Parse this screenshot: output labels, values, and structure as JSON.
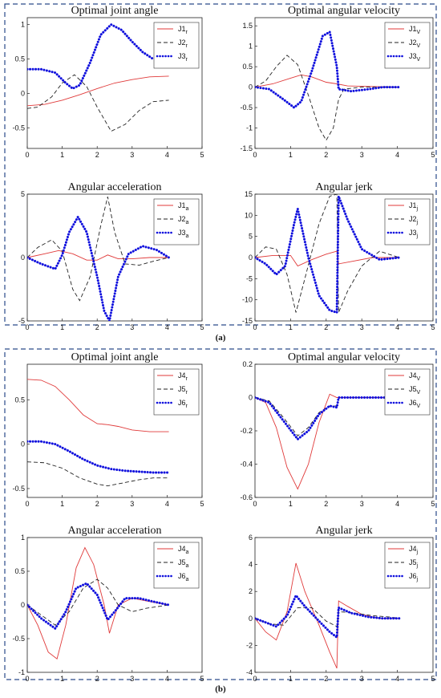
{
  "figure": {
    "caption_a": "(a)",
    "caption_b": "(b)"
  },
  "colors": {
    "red": "#e03a3a",
    "black": "#222222",
    "blue": "#1010dd",
    "frame": "#2a4a8a"
  },
  "chart_data": [
    {
      "type": "line",
      "title": "Optimal joint angle",
      "group": "a",
      "xlim": [
        0,
        5
      ],
      "ylim": [
        -0.8,
        1.1
      ],
      "xticks": [
        0,
        1,
        2,
        3,
        4,
        5
      ],
      "yticks": [
        -0.5,
        0,
        0.5,
        1
      ],
      "legend_position": "top-right",
      "series": [
        {
          "name": "J1",
          "sub": "r",
          "style": "solid",
          "color": "#e03a3a",
          "x": [
            0,
            0.5,
            1,
            1.5,
            2,
            2.5,
            3,
            3.5,
            4.05
          ],
          "y": [
            -0.18,
            -0.16,
            -0.1,
            -0.02,
            0.07,
            0.15,
            0.2,
            0.24,
            0.25
          ]
        },
        {
          "name": "J2",
          "sub": "r",
          "style": "dashed",
          "color": "#222222",
          "x": [
            0,
            0.3,
            0.7,
            1,
            1.35,
            1.7,
            2,
            2.4,
            2.8,
            3.2,
            3.6,
            4.05
          ],
          "y": [
            -0.22,
            -0.2,
            -0.05,
            0.15,
            0.27,
            0.1,
            -0.2,
            -0.55,
            -0.45,
            -0.25,
            -0.12,
            -0.1
          ]
        },
        {
          "name": "J3",
          "sub": "r",
          "style": "dotted",
          "color": "#1010dd",
          "x": [
            0,
            0.4,
            0.8,
            1.1,
            1.3,
            1.5,
            1.8,
            2.1,
            2.4,
            2.7,
            3,
            3.3,
            3.6
          ],
          "y": [
            0.35,
            0.35,
            0.3,
            0.15,
            0.07,
            0.12,
            0.45,
            0.85,
            1.0,
            0.92,
            0.75,
            0.6,
            0.5
          ]
        }
      ]
    },
    {
      "type": "line",
      "title": "Optimal angular velocity",
      "group": "a",
      "xlim": [
        0,
        5
      ],
      "ylim": [
        -1.5,
        1.7
      ],
      "xticks": [
        0,
        1,
        2,
        3,
        4,
        5
      ],
      "yticks": [
        -1.5,
        -1,
        -0.5,
        0,
        0.5,
        1,
        1.5
      ],
      "legend_position": "top-right",
      "series": [
        {
          "name": "J1",
          "sub": "V",
          "style": "solid",
          "color": "#e03a3a",
          "x": [
            0,
            0.5,
            1,
            1.3,
            1.6,
            2,
            2.3,
            2.6,
            3,
            4.05
          ],
          "y": [
            0,
            0.08,
            0.22,
            0.3,
            0.25,
            0.12,
            0.08,
            0.03,
            0.02,
            0
          ]
        },
        {
          "name": "J2",
          "sub": "V",
          "style": "dashed",
          "color": "#222222",
          "x": [
            0,
            0.3,
            0.6,
            0.9,
            1.2,
            1.5,
            1.8,
            2.0,
            2.2,
            2.35,
            2.5,
            3,
            3.5,
            4.05
          ],
          "y": [
            0,
            0.15,
            0.5,
            0.78,
            0.55,
            -0.2,
            -1.0,
            -1.3,
            -1.0,
            -0.3,
            -0.05,
            0,
            0,
            0
          ]
        },
        {
          "name": "J3",
          "sub": "V",
          "style": "dotted",
          "color": "#1010dd",
          "x": [
            0,
            0.4,
            0.8,
            1.1,
            1.3,
            1.6,
            1.9,
            2.1,
            2.3,
            2.35,
            2.7,
            3.2,
            3.6,
            4.05
          ],
          "y": [
            0,
            -0.05,
            -0.3,
            -0.5,
            -0.35,
            0.4,
            1.25,
            1.35,
            0.5,
            -0.05,
            -0.1,
            -0.05,
            0,
            0
          ]
        }
      ]
    },
    {
      "type": "line",
      "title": "Angular acceleration",
      "group": "a",
      "xlim": [
        0,
        5
      ],
      "ylim": [
        -5,
        5
      ],
      "xticks": [
        0,
        1,
        2,
        3,
        4,
        5
      ],
      "yticks": [
        -5,
        0,
        5
      ],
      "legend_position": "top-right",
      "series": [
        {
          "name": "J1",
          "sub": "a",
          "style": "solid",
          "color": "#e03a3a",
          "x": [
            0,
            0.5,
            0.9,
            1.3,
            1.7,
            2.0,
            2.3,
            2.6,
            3.0,
            3.5,
            4.05
          ],
          "y": [
            0,
            0.3,
            0.55,
            0.3,
            -0.2,
            -0.2,
            0.2,
            -0.1,
            -0.1,
            0,
            0
          ]
        },
        {
          "name": "J2",
          "sub": "a",
          "style": "dashed",
          "color": "#222222",
          "x": [
            0,
            0.3,
            0.7,
            1.0,
            1.3,
            1.5,
            1.8,
            2.1,
            2.3,
            2.5,
            2.8,
            3.2,
            3.6,
            4.05
          ],
          "y": [
            0,
            0.8,
            1.4,
            0.5,
            -2.5,
            -3.4,
            -1.5,
            2.5,
            4.8,
            2.0,
            -0.5,
            -0.6,
            -0.3,
            0
          ]
        },
        {
          "name": "J3",
          "sub": "a",
          "style": "dotted",
          "color": "#1010dd",
          "x": [
            0,
            0.4,
            0.8,
            1.0,
            1.2,
            1.45,
            1.7,
            2.0,
            2.2,
            2.35,
            2.6,
            2.9,
            3.3,
            3.7,
            4.05
          ],
          "y": [
            0,
            -0.5,
            -0.9,
            0.2,
            2.0,
            3.2,
            2.0,
            -1.5,
            -4.2,
            -5.0,
            -1.5,
            0.3,
            0.9,
            0.6,
            0
          ]
        }
      ]
    },
    {
      "type": "line",
      "title": "Angular jerk",
      "group": "a",
      "xlim": [
        0,
        5
      ],
      "ylim": [
        -15,
        15
      ],
      "xticks": [
        0,
        1,
        2,
        3,
        4,
        5
      ],
      "yticks": [
        -15,
        -10,
        -5,
        0,
        5,
        10,
        15
      ],
      "legend_position": "top-right",
      "series": [
        {
          "name": "J1",
          "sub": "j",
          "style": "solid",
          "color": "#e03a3a",
          "x": [
            0,
            0.5,
            1.0,
            1.2,
            1.6,
            2.0,
            2.3,
            2.35,
            2.8,
            3.3,
            4.05
          ],
          "y": [
            0,
            0.5,
            0.5,
            -2.0,
            -0.5,
            0.8,
            1.5,
            -1.5,
            -0.8,
            0,
            0
          ]
        },
        {
          "name": "J2",
          "sub": "j",
          "style": "dashed",
          "color": "#222222",
          "x": [
            0,
            0.3,
            0.6,
            0.9,
            1.15,
            1.4,
            1.8,
            2.1,
            2.3,
            2.35,
            2.6,
            3.0,
            3.5,
            4.05
          ],
          "y": [
            0,
            2.5,
            2.0,
            -4.0,
            -13.0,
            -5.0,
            8.0,
            14.5,
            15.0,
            -13.0,
            -8.0,
            -2.0,
            1.5,
            0
          ]
        },
        {
          "name": "J3",
          "sub": "j",
          "style": "dotted",
          "color": "#1010dd",
          "x": [
            0,
            0.3,
            0.6,
            0.85,
            1.1,
            1.2,
            1.5,
            1.8,
            2.1,
            2.3,
            2.35,
            2.6,
            3.0,
            3.5,
            4.05
          ],
          "y": [
            0,
            -1.5,
            -4.0,
            -2.0,
            8.0,
            11.5,
            0.0,
            -9.0,
            -12.5,
            -13.0,
            14.5,
            9.0,
            2.0,
            -0.5,
            0
          ]
        }
      ]
    },
    {
      "type": "line",
      "title": "Optimal joint angle",
      "group": "b",
      "xlim": [
        0,
        5
      ],
      "ylim": [
        -0.6,
        0.9
      ],
      "xticks": [
        0,
        1,
        2,
        3,
        4,
        5
      ],
      "yticks": [
        -0.5,
        0,
        0.5
      ],
      "legend_position": "top-right",
      "series": [
        {
          "name": "J4",
          "sub": "r",
          "style": "solid",
          "color": "#e03a3a",
          "x": [
            0,
            0.4,
            0.8,
            1.2,
            1.6,
            2.0,
            2.3,
            2.6,
            3.0,
            3.5,
            4.05
          ],
          "y": [
            0.73,
            0.72,
            0.65,
            0.5,
            0.33,
            0.23,
            0.22,
            0.2,
            0.16,
            0.14,
            0.14
          ]
        },
        {
          "name": "J5",
          "sub": "r",
          "style": "dashed",
          "color": "#222222",
          "x": [
            0,
            0.5,
            1.0,
            1.5,
            2.0,
            2.3,
            2.7,
            3.2,
            3.6,
            4.05
          ],
          "y": [
            -0.2,
            -0.21,
            -0.27,
            -0.38,
            -0.45,
            -0.47,
            -0.44,
            -0.4,
            -0.38,
            -0.38
          ]
        },
        {
          "name": "J6",
          "sub": "r",
          "style": "dotted",
          "color": "#1010dd",
          "x": [
            0,
            0.4,
            0.8,
            1.2,
            1.6,
            2.0,
            2.4,
            2.8,
            3.2,
            3.6,
            4.05
          ],
          "y": [
            0.03,
            0.03,
            0.0,
            -0.08,
            -0.17,
            -0.24,
            -0.28,
            -0.3,
            -0.31,
            -0.32,
            -0.32
          ]
        }
      ]
    },
    {
      "type": "line",
      "title": "Optimal angular velocity",
      "group": "b",
      "xlim": [
        0,
        5
      ],
      "ylim": [
        -0.6,
        0.2
      ],
      "xticks": [
        0,
        1,
        2,
        3,
        4,
        5
      ],
      "yticks": [
        -0.6,
        -0.4,
        -0.2,
        0,
        0.2
      ],
      "legend_position": "top-right",
      "series": [
        {
          "name": "J4",
          "sub": "V",
          "style": "solid",
          "color": "#e03a3a",
          "x": [
            0,
            0.3,
            0.6,
            0.9,
            1.2,
            1.5,
            1.8,
            2.1,
            2.3,
            2.35,
            2.8,
            3.3,
            4.05
          ],
          "y": [
            0,
            -0.03,
            -0.18,
            -0.42,
            -0.55,
            -0.4,
            -0.15,
            0.02,
            0.0,
            0,
            0,
            0,
            0
          ]
        },
        {
          "name": "J5",
          "sub": "V",
          "style": "dashed",
          "color": "#222222",
          "x": [
            0,
            0.4,
            0.8,
            1.2,
            1.5,
            1.8,
            2.1,
            2.3
          ],
          "y": [
            0,
            -0.02,
            -0.12,
            -0.23,
            -0.18,
            -0.09,
            -0.05,
            -0.05
          ]
        },
        {
          "name": "J6",
          "sub": "V",
          "style": "dotted",
          "color": "#1010dd",
          "x": [
            0,
            0.4,
            0.8,
            1.2,
            1.5,
            1.8,
            2.1,
            2.3,
            2.35,
            2.8,
            3.3,
            4.05
          ],
          "y": [
            0,
            -0.03,
            -0.14,
            -0.25,
            -0.2,
            -0.1,
            -0.05,
            -0.06,
            0,
            0,
            0,
            0
          ]
        }
      ]
    },
    {
      "type": "line",
      "title": "Angular acceleration",
      "group": "b",
      "xlim": [
        0,
        5
      ],
      "ylim": [
        -1,
        1
      ],
      "xticks": [
        0,
        1,
        2,
        3,
        4,
        5
      ],
      "yticks": [
        -1,
        -0.5,
        0,
        0.5,
        1
      ],
      "legend_position": "top-right",
      "series": [
        {
          "name": "J4",
          "sub": "a",
          "style": "solid",
          "color": "#e03a3a",
          "x": [
            0,
            0.3,
            0.6,
            0.85,
            1.1,
            1.4,
            1.65,
            1.9,
            2.2,
            2.35,
            2.6,
            3.0,
            3.5,
            4.05
          ],
          "y": [
            0,
            -0.3,
            -0.7,
            -0.8,
            -0.3,
            0.55,
            0.85,
            0.6,
            0.0,
            -0.42,
            0.0,
            0.1,
            0.05,
            0
          ]
        },
        {
          "name": "J5",
          "sub": "a",
          "style": "dashed",
          "color": "#222222",
          "x": [
            0,
            0.4,
            0.8,
            1.2,
            1.6,
            2.0,
            2.3,
            2.6,
            3.0,
            3.4,
            4.05
          ],
          "y": [
            0,
            -0.15,
            -0.3,
            -0.1,
            0.25,
            0.38,
            0.25,
            0.0,
            -0.1,
            -0.05,
            0
          ]
        },
        {
          "name": "J6",
          "sub": "a",
          "style": "dotted",
          "color": "#1010dd",
          "x": [
            0,
            0.4,
            0.8,
            1.1,
            1.4,
            1.7,
            2.0,
            2.3,
            2.5,
            2.8,
            3.2,
            3.6,
            4.05
          ],
          "y": [
            0,
            -0.2,
            -0.35,
            -0.1,
            0.25,
            0.32,
            0.15,
            -0.22,
            -0.1,
            0.1,
            0.1,
            0.05,
            0
          ]
        }
      ]
    },
    {
      "type": "line",
      "title": "Angular jerk",
      "group": "b",
      "xlim": [
        0,
        5
      ],
      "ylim": [
        -4,
        6
      ],
      "xticks": [
        0,
        1,
        2,
        3,
        4,
        5
      ],
      "yticks": [
        -4,
        -2,
        0,
        2,
        4,
        6
      ],
      "legend_position": "top-right",
      "series": [
        {
          "name": "J4",
          "sub": "j",
          "style": "solid",
          "color": "#e03a3a",
          "x": [
            0,
            0.3,
            0.6,
            0.9,
            1.15,
            1.4,
            1.8,
            2.1,
            2.3,
            2.35,
            2.6,
            3.0,
            3.5,
            4.05
          ],
          "y": [
            0,
            -1.0,
            -1.6,
            0.5,
            4.1,
            2.0,
            -0.5,
            -2.5,
            -3.7,
            1.3,
            0.9,
            0.3,
            0,
            0
          ]
        },
        {
          "name": "J5",
          "sub": "j",
          "style": "dashed",
          "color": "#222222",
          "x": [
            0,
            0.4,
            0.8,
            1.2,
            1.6,
            2.0,
            2.3,
            2.35,
            2.8,
            3.3,
            3.8,
            4.05
          ],
          "y": [
            0,
            -0.4,
            -0.5,
            0.8,
            0.8,
            -0.2,
            -0.6,
            0.5,
            0.4,
            0.2,
            0.1,
            0
          ]
        },
        {
          "name": "J6",
          "sub": "j",
          "style": "dotted",
          "color": "#1010dd",
          "x": [
            0,
            0.3,
            0.6,
            0.9,
            1.15,
            1.4,
            1.8,
            2.1,
            2.3,
            2.35,
            2.7,
            3.2,
            3.6,
            4.05
          ],
          "y": [
            0,
            -0.3,
            -0.6,
            0.2,
            1.7,
            0.9,
            -0.2,
            -1.0,
            -1.4,
            0.8,
            0.4,
            0.1,
            0,
            0
          ]
        }
      ]
    }
  ]
}
